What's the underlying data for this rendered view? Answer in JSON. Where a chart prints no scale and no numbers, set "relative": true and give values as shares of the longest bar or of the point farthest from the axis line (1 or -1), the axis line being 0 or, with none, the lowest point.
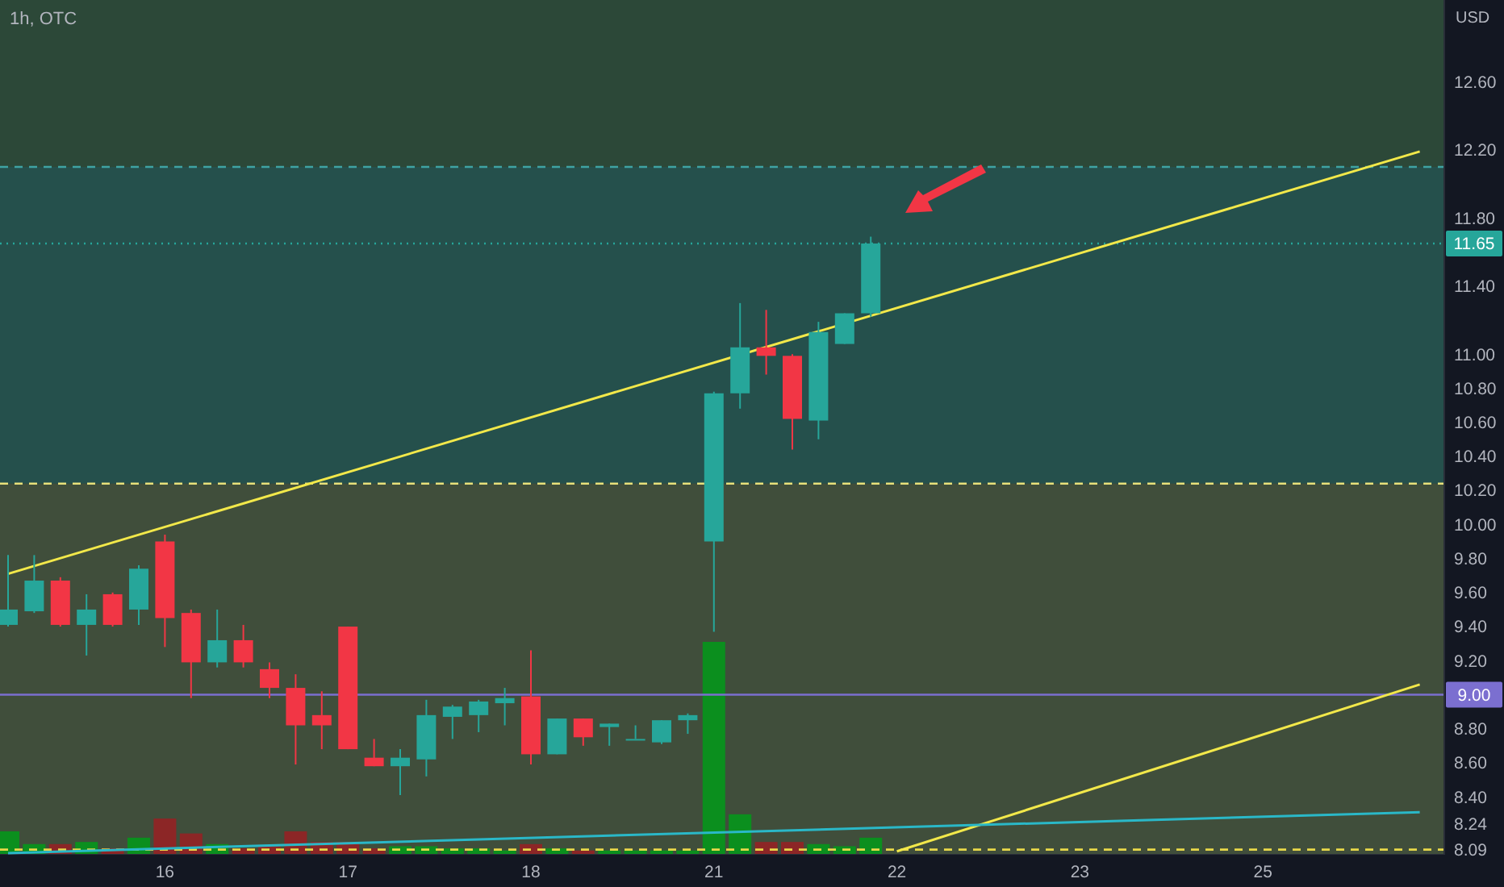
{
  "chart_data": [
    {
      "type": "candlestick",
      "title": "1h, OTC",
      "ylabel": "USD",
      "categories": [
        null,
        null,
        null,
        null,
        null,
        null,
        "16",
        null,
        null,
        null,
        null,
        null,
        null,
        "17",
        null,
        null,
        null,
        null,
        null,
        null,
        "18",
        null,
        null,
        null,
        null,
        null,
        null,
        "21",
        null,
        null,
        null,
        null,
        null,
        null,
        "22",
        null,
        null,
        null,
        null,
        null,
        null,
        "23",
        null,
        null,
        null,
        null,
        null,
        null,
        "25",
        null,
        null,
        null,
        null,
        null,
        null
      ],
      "ohlc": [
        [
          9.41,
          9.82,
          9.4,
          9.5
        ],
        [
          9.49,
          9.82,
          9.48,
          9.67
        ],
        [
          9.67,
          9.69,
          9.4,
          9.41
        ],
        [
          9.41,
          9.59,
          9.23,
          9.5
        ],
        [
          9.59,
          9.6,
          9.4,
          9.41
        ],
        [
          9.5,
          9.76,
          9.41,
          9.74
        ],
        [
          9.9,
          9.94,
          9.28,
          9.45
        ],
        [
          9.48,
          9.5,
          8.98,
          9.19
        ],
        [
          9.19,
          9.5,
          9.16,
          9.32
        ],
        [
          9.32,
          9.41,
          9.16,
          9.19
        ],
        [
          9.15,
          9.19,
          8.98,
          9.04
        ],
        [
          9.04,
          9.12,
          8.59,
          8.82
        ],
        [
          8.88,
          9.02,
          8.68,
          8.82
        ],
        [
          9.4,
          9.4,
          8.68,
          8.68
        ],
        [
          8.63,
          8.74,
          8.58,
          8.58
        ],
        [
          8.58,
          8.68,
          8.41,
          8.63
        ],
        [
          8.62,
          8.97,
          8.52,
          8.88
        ],
        [
          8.87,
          8.94,
          8.74,
          8.93
        ],
        [
          8.88,
          8.97,
          8.78,
          8.96
        ],
        [
          8.95,
          9.04,
          8.82,
          8.98
        ],
        [
          8.99,
          9.26,
          8.59,
          8.65
        ],
        [
          8.65,
          8.86,
          8.65,
          8.86
        ],
        [
          8.86,
          8.86,
          8.7,
          8.75
        ],
        [
          8.81,
          8.83,
          8.7,
          8.83
        ],
        [
          8.74,
          8.82,
          8.74,
          8.74
        ],
        [
          8.72,
          8.85,
          8.71,
          8.85
        ],
        [
          8.85,
          8.89,
          8.77,
          8.88
        ],
        [
          9.9,
          10.78,
          9.37,
          10.77
        ],
        [
          10.77,
          11.3,
          10.68,
          11.04
        ],
        [
          11.04,
          11.26,
          10.88,
          10.99
        ],
        [
          10.99,
          11.0,
          10.44,
          10.62
        ],
        [
          10.61,
          11.19,
          10.5,
          11.13
        ],
        [
          11.06,
          11.24,
          11.06,
          11.24
        ],
        [
          11.24,
          11.69,
          11.22,
          11.65
        ],
        null,
        null,
        null,
        null,
        null,
        null,
        null,
        null,
        null,
        null,
        null,
        null,
        null,
        null,
        null,
        null,
        null,
        null,
        null,
        null,
        null
      ],
      "colors": [
        "#26a69a",
        "#26a69a",
        "#f23645",
        "#26a69a",
        "#f23645",
        "#26a69a",
        "#f23645",
        "#f23645",
        "#26a69a",
        "#f23645",
        "#f23645",
        "#f23645",
        "#f23645",
        "#f23645",
        "#f23645",
        "#26a69a",
        "#26a69a",
        "#26a69a",
        "#26a69a",
        "#26a69a",
        "#f23645",
        "#26a69a",
        "#f23645",
        "#26a69a",
        "#26a69a",
        "#26a69a",
        "#26a69a",
        "#26a69a",
        "#26a69a",
        "#f23645",
        "#f23645",
        "#26a69a",
        "#26a69a",
        "#26a69a",
        null,
        null,
        null,
        null,
        null,
        null,
        null,
        null,
        null,
        null,
        null,
        null,
        null,
        null,
        null,
        null,
        null,
        null,
        null,
        null,
        null
      ],
      "series": [
        {
          "type": "line",
          "color": "#f2e84a",
          "values": [
            9.71,
            null,
            null,
            null,
            null,
            null,
            null,
            null,
            null,
            null,
            null,
            null,
            null,
            null,
            null,
            null,
            null,
            null,
            null,
            null,
            null,
            null,
            null,
            null,
            null,
            null,
            null,
            null,
            null,
            null,
            null,
            null,
            null,
            null,
            null,
            null,
            null,
            null,
            null,
            null,
            null,
            null,
            null,
            null,
            null,
            null,
            null,
            null,
            null,
            null,
            null,
            null,
            null,
            null,
            12.19
          ]
        },
        {
          "type": "line",
          "color": "#f2e84a",
          "values": [
            null,
            null,
            null,
            null,
            null,
            null,
            null,
            null,
            null,
            null,
            null,
            null,
            null,
            null,
            null,
            null,
            null,
            null,
            null,
            null,
            null,
            null,
            null,
            null,
            null,
            null,
            null,
            null,
            null,
            null,
            null,
            null,
            null,
            null,
            8.08,
            null,
            null,
            null,
            null,
            null,
            null,
            null,
            null,
            null,
            null,
            null,
            null,
            null,
            null,
            null,
            null,
            null,
            null,
            null,
            9.06
          ]
        },
        {
          "type": "line",
          "color": "#2ab8c8",
          "values": [
            8.07,
            null,
            null,
            null,
            null,
            null,
            null,
            null,
            null,
            null,
            null,
            null,
            null,
            null,
            null,
            null,
            null,
            null,
            null,
            null,
            null,
            null,
            null,
            null,
            null,
            null,
            null,
            null,
            null,
            null,
            null,
            null,
            null,
            null,
            null,
            null,
            null,
            null,
            null,
            null,
            null,
            null,
            null,
            null,
            null,
            null,
            null,
            null,
            null,
            null,
            null,
            null,
            null,
            null,
            8.31
          ]
        }
      ],
      "bands": [
        {
          "axis": "y",
          "from": 10.24,
          "to": 12.1,
          "color": "#25504c"
        },
        {
          "axis": "y",
          "from": 12.1,
          "to": 13.08,
          "color": "#2c4838"
        }
      ],
      "ref_lines": [
        {
          "axis": "y",
          "value": 12.1,
          "color": "#3fa3a3",
          "line_style": "dashed"
        },
        {
          "axis": "y",
          "value": 11.65,
          "label": "11.65",
          "color": "#26a69a",
          "line_style": "dotted"
        },
        {
          "axis": "y",
          "value": 10.24,
          "color": "#e8e07a",
          "line_style": "dashed"
        },
        {
          "axis": "y",
          "value": 9.0,
          "label": "9.00",
          "color": "#7b6fd0",
          "line_style": "solid"
        },
        {
          "axis": "y",
          "value": 8.09,
          "color": "#e8d84a",
          "line_style": "dashed"
        }
      ],
      "ylim": [
        8.06,
        13.08
      ],
      "yticks": [
        {
          "value": 12.6,
          "label": "12.60"
        },
        {
          "value": 12.2,
          "label": "12.20"
        },
        {
          "value": 11.8,
          "label": "11.80"
        },
        {
          "value": 11.4,
          "label": "11.40"
        },
        {
          "value": 11.0,
          "label": "11.00"
        },
        {
          "value": 10.8,
          "label": "10.80"
        },
        {
          "value": 10.6,
          "label": "10.60"
        },
        {
          "value": 10.4,
          "label": "10.40"
        },
        {
          "value": 10.2,
          "label": "10.20"
        },
        {
          "value": 10.0,
          "label": "10.00"
        },
        {
          "value": 9.8,
          "label": "9.80"
        },
        {
          "value": 9.6,
          "label": "9.60"
        },
        {
          "value": 9.4,
          "label": "9.40"
        },
        {
          "value": 9.2,
          "label": "9.20"
        },
        {
          "value": 8.8,
          "label": "8.80"
        },
        {
          "value": 8.6,
          "label": "8.60"
        },
        {
          "value": 8.4,
          "label": "8.40"
        },
        {
          "value": 8.24,
          "label": "8.24"
        },
        {
          "value": 8.09,
          "label": "8.09"
        }
      ],
      "grid": false
    },
    {
      "type": "bar",
      "relative": true,
      "categories": [
        null,
        null,
        null,
        null,
        null,
        null,
        null,
        null,
        null,
        null,
        null,
        null,
        null,
        null,
        null,
        null,
        null,
        null,
        null,
        null,
        null,
        null,
        null,
        null,
        null,
        null,
        null,
        null,
        null,
        null,
        null,
        null,
        null,
        null,
        null,
        null,
        null,
        null,
        null,
        null,
        null,
        null,
        null,
        null,
        null,
        null,
        null,
        null,
        null,
        null,
        null,
        null,
        null,
        null,
        null
      ],
      "values": [
        0.11,
        0.05,
        0.05,
        0.06,
        0.03,
        0.08,
        0.17,
        0.1,
        0.05,
        0.03,
        0.04,
        0.11,
        0.06,
        0.06,
        0.03,
        0.04,
        0.04,
        0.03,
        0.03,
        0.02,
        0.05,
        0.03,
        0.02,
        0.02,
        0.02,
        0.02,
        0.02,
        1,
        0.19,
        0.06,
        0.06,
        0.05,
        0.04,
        0.08,
        null,
        null,
        null,
        null,
        null,
        null,
        null,
        null,
        null,
        null,
        null,
        null,
        null,
        null,
        null,
        null,
        null,
        null,
        null,
        null,
        null
      ],
      "colors": [
        "#0b8f1e",
        "#0b8f1e",
        "#8c2626",
        "#0b8f1e",
        "#8c2626",
        "#0b8f1e",
        "#8c2626",
        "#8c2626",
        "#0b8f1e",
        "#8c2626",
        "#8c2626",
        "#8c2626",
        "#8c2626",
        "#8c2626",
        "#8c2626",
        "#0b8f1e",
        "#0b8f1e",
        "#0b8f1e",
        "#0b8f1e",
        "#0b8f1e",
        "#8c2626",
        "#0b8f1e",
        "#8c2626",
        "#0b8f1e",
        "#0b8f1e",
        "#0b8f1e",
        "#0b8f1e",
        "#0b8f1e",
        "#0b8f1e",
        "#8c2626",
        "#8c2626",
        "#0b8f1e",
        "#0b8f1e",
        "#0b8f1e",
        null,
        null,
        null,
        null,
        null,
        null,
        null,
        null,
        null,
        null,
        null,
        null,
        null,
        null,
        null,
        null,
        null,
        null,
        null,
        null,
        null
      ]
    }
  ]
}
